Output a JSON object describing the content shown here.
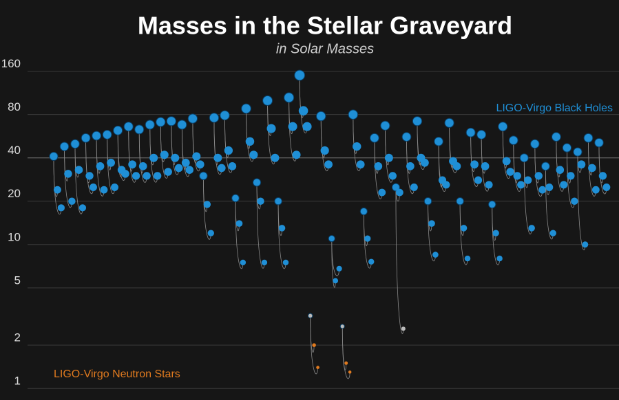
{
  "chart_data": {
    "type": "merger",
    "title": "Masses in the Stellar Graveyard",
    "subtitle": "in Solar Masses",
    "log_y": true,
    "ylim": [
      0.85,
      190
    ],
    "yticks": [
      1,
      2,
      5,
      10,
      20,
      40,
      80,
      160
    ],
    "grid": true,
    "remnant_color_small": "#bbbbbb",
    "series": [
      {
        "name": "LIGO-Virgo Black Holes",
        "color": "#1f8fd6",
        "legend": "upper right",
        "values": [
          [
            24,
            18,
            41
          ],
          [
            31,
            20,
            48
          ],
          [
            33,
            18,
            50
          ],
          [
            30,
            25,
            55
          ],
          [
            35,
            24,
            57
          ],
          [
            37,
            25,
            58
          ],
          [
            33,
            31,
            62
          ],
          [
            36,
            30,
            66
          ],
          [
            35,
            30,
            63
          ],
          [
            40,
            30,
            68
          ],
          [
            42,
            32,
            71
          ],
          [
            40,
            34,
            72
          ],
          [
            37,
            33,
            68
          ],
          [
            41,
            36,
            75
          ],
          [
            19,
            12,
            30
          ],
          [
            40,
            34,
            76
          ],
          [
            45,
            35,
            79
          ],
          [
            14,
            7.5,
            21
          ],
          [
            52,
            42,
            88
          ],
          [
            20,
            7.5,
            27
          ],
          [
            64,
            40,
            100
          ],
          [
            13,
            7.5,
            20
          ],
          [
            66,
            42,
            105
          ],
          [
            85,
            66,
            150
          ],
          [
            45,
            36,
            78
          ],
          [
            5.6,
            6.8,
            11
          ],
          [
            48,
            36,
            80
          ],
          [
            11,
            7.6,
            17
          ],
          [
            35,
            23,
            55
          ],
          [
            40,
            30,
            67
          ],
          [
            23,
            2.6,
            25
          ],
          [
            35,
            25,
            56
          ],
          [
            40,
            37,
            72
          ],
          [
            14,
            8.5,
            20
          ],
          [
            28,
            26,
            52
          ],
          [
            38,
            35,
            70
          ],
          [
            13,
            8,
            20
          ],
          [
            36,
            28,
            60
          ],
          [
            35,
            26,
            58
          ],
          [
            12,
            8,
            19
          ],
          [
            38,
            32,
            66
          ],
          [
            30,
            26,
            53
          ],
          [
            28,
            13,
            40
          ],
          [
            30,
            24,
            50
          ],
          [
            25,
            12,
            35
          ],
          [
            33,
            26,
            56
          ],
          [
            30,
            20,
            47
          ],
          [
            36,
            10,
            44
          ],
          [
            34,
            24,
            55
          ],
          [
            30,
            25,
            51
          ]
        ]
      },
      {
        "name": "LIGO-Virgo Neutron Stars",
        "color": "#e07a1f",
        "legend": "lower left",
        "values": [
          [
            2.0,
            1.4,
            3.2
          ],
          [
            1.5,
            1.3,
            2.7
          ]
        ]
      }
    ]
  }
}
